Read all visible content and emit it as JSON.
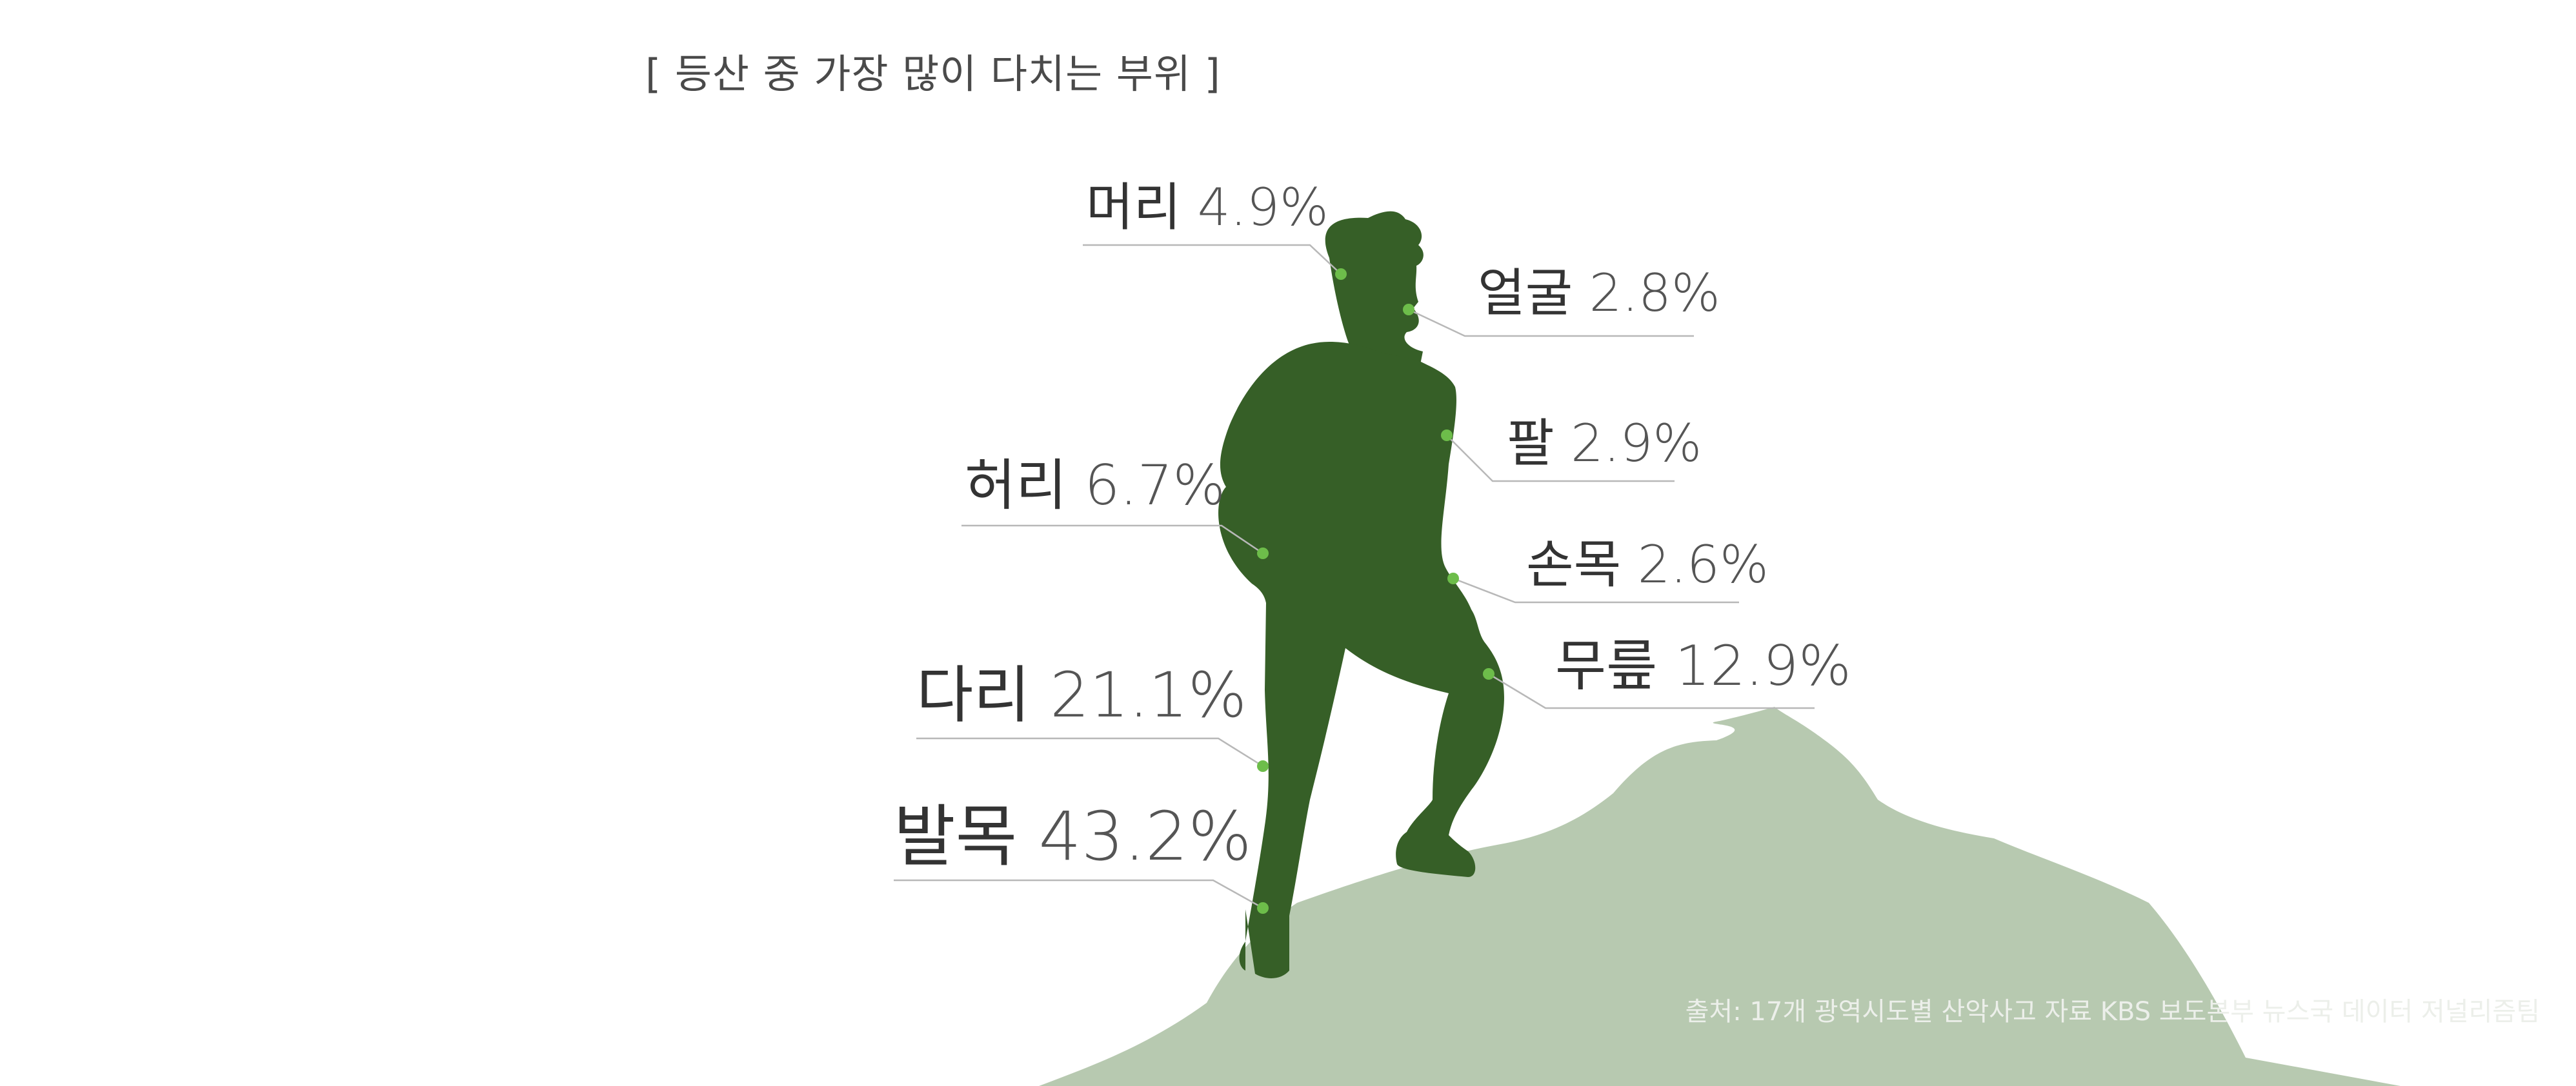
{
  "title": "[ 등산 중 가장 많이 다치는 부위 ]",
  "source": "출처: 17개 광역시도별 산악사고 자료 KBS 보도본부 뉴스국 데이터 저널리즘팀",
  "colors": {
    "mountain": "#b7c9b0",
    "hiker": "#365f27",
    "point": "#6dbd4a",
    "leader": "#b8b8b8",
    "part_text": "#333333",
    "value_text": "#555555"
  },
  "chart_data": {
    "type": "bar",
    "title": "[ 등산 중 가장 많이 다치는 부위 ]",
    "unit": "%",
    "categories": [
      "머리",
      "얼굴",
      "팔",
      "손목",
      "허리",
      "무릎",
      "다리",
      "발목"
    ],
    "values": [
      4.9,
      2.8,
      2.9,
      2.6,
      6.7,
      12.9,
      21.1,
      43.2
    ],
    "labels": [
      "4.9%",
      "2.8%",
      "2.9%",
      "2.6%",
      "6.7%",
      "12.9%",
      "21.1%",
      "43.2%"
    ],
    "series": [
      {
        "values": [
          4.9,
          2.8,
          2.9,
          2.6,
          6.7,
          12.9,
          21.1,
          43.2
        ]
      }
    ]
  }
}
